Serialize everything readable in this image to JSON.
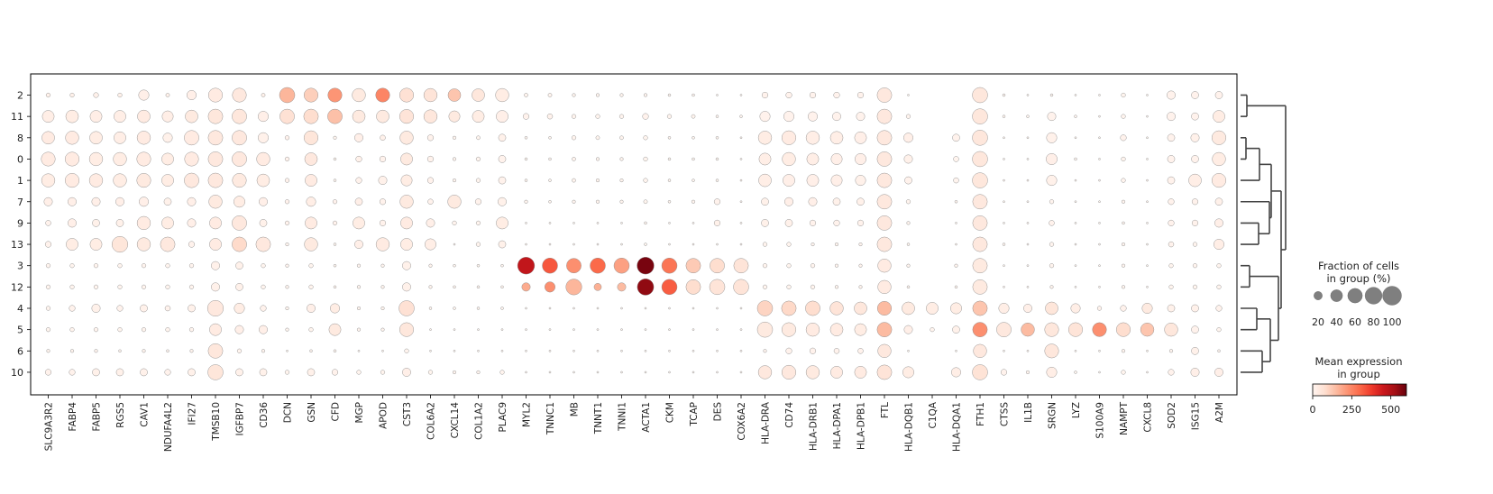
{
  "chart_data": {
    "type": "dotplot",
    "title": "",
    "xlabel": "",
    "ylabel": "",
    "genes": [
      "SLC9A3R2",
      "FABP4",
      "FABP5",
      "RGS5",
      "CAV1",
      "NDUFA4L2",
      "IFI27",
      "TMSB10",
      "IGFBP7",
      "CD36",
      "DCN",
      "GSN",
      "CFD",
      "MGP",
      "APOD",
      "CST3",
      "COL6A2",
      "CXCL14",
      "COL1A2",
      "PLAC9",
      "MYL2",
      "TNNC1",
      "MB",
      "TNNT1",
      "TNNI1",
      "ACTA1",
      "CKM",
      "TCAP",
      "DES",
      "COX6A2",
      "HLA-DRA",
      "CD74",
      "HLA-DRB1",
      "HLA-DPA1",
      "HLA-DPB1",
      "FTL",
      "HLA-DQB1",
      "C1QA",
      "HLA-DQA1",
      "FTH1",
      "CTSS",
      "IL1B",
      "SRGN",
      "LYZ",
      "S100A9",
      "NAMPT",
      "CXCL8",
      "SOD2",
      "ISG15",
      "A2M"
    ],
    "groups": [
      "2",
      "11",
      "8",
      "0",
      "1",
      "7",
      "9",
      "13",
      "3",
      "12",
      "4",
      "5",
      "6",
      "10"
    ],
    "size_legend": {
      "title_line1": "Fraction of cells",
      "title_line2": "in group (%)",
      "values": [
        20,
        40,
        60,
        80,
        100
      ],
      "labels": [
        "20",
        "40",
        "60",
        "80",
        "100"
      ]
    },
    "color_legend": {
      "title_line1": "Mean expression",
      "title_line2": "in group",
      "range": [
        0,
        600
      ],
      "ticks": [
        0,
        250,
        500
      ],
      "tick_labels": [
        "0",
        "250",
        "500"
      ],
      "colormap": "Reds"
    },
    "dendrogram": true,
    "fraction_pct": [
      [
        5,
        5,
        7,
        5,
        30,
        4,
        25,
        55,
        55,
        4,
        65,
        55,
        55,
        50,
        55,
        55,
        50,
        45,
        45,
        50,
        4,
        4,
        3,
        3,
        3,
        3,
        2,
        2,
        1,
        1,
        10,
        10,
        10,
        10,
        10,
        60,
        1,
        0,
        0,
        65,
        2,
        1,
        2,
        1,
        1,
        5,
        1,
        20,
        15,
        15
      ],
      [
        40,
        45,
        40,
        40,
        45,
        35,
        45,
        60,
        60,
        30,
        60,
        60,
        60,
        45,
        45,
        55,
        50,
        35,
        40,
        40,
        10,
        8,
        5,
        5,
        5,
        10,
        5,
        4,
        2,
        2,
        30,
        30,
        25,
        20,
        20,
        60,
        5,
        0,
        0,
        65,
        2,
        2,
        20,
        2,
        1,
        5,
        1,
        20,
        15,
        40
      ],
      [
        45,
        50,
        45,
        40,
        50,
        25,
        60,
        60,
        60,
        30,
        5,
        55,
        3,
        20,
        8,
        50,
        10,
        3,
        4,
        15,
        2,
        2,
        5,
        4,
        4,
        5,
        2,
        2,
        2,
        1,
        50,
        55,
        50,
        45,
        40,
        60,
        25,
        0,
        15,
        65,
        1,
        1,
        30,
        1,
        1,
        10,
        1,
        15,
        20,
        55
      ],
      [
        55,
        55,
        50,
        50,
        55,
        40,
        55,
        60,
        60,
        50,
        5,
        45,
        2,
        10,
        10,
        40,
        10,
        3,
        5,
        15,
        2,
        2,
        4,
        3,
        3,
        5,
        2,
        2,
        2,
        1,
        40,
        50,
        40,
        35,
        35,
        60,
        20,
        0,
        8,
        65,
        1,
        1,
        35,
        2,
        1,
        5,
        1,
        15,
        15,
        50
      ],
      [
        50,
        55,
        50,
        50,
        55,
        40,
        60,
        60,
        55,
        45,
        5,
        40,
        2,
        10,
        20,
        35,
        10,
        3,
        5,
        15,
        2,
        2,
        4,
        3,
        3,
        5,
        2,
        2,
        2,
        1,
        45,
        40,
        40,
        35,
        30,
        60,
        15,
        0,
        8,
        65,
        1,
        1,
        30,
        1,
        1,
        5,
        1,
        15,
        45,
        55
      ],
      [
        20,
        20,
        20,
        20,
        25,
        15,
        20,
        50,
        35,
        20,
        5,
        25,
        5,
        15,
        10,
        50,
        8,
        50,
        10,
        20,
        3,
        2,
        3,
        3,
        3,
        4,
        2,
        3,
        10,
        1,
        15,
        20,
        20,
        15,
        15,
        60,
        5,
        0,
        2,
        60,
        1,
        1,
        5,
        1,
        1,
        3,
        1,
        10,
        10,
        15
      ],
      [
        8,
        20,
        15,
        15,
        50,
        40,
        20,
        40,
        60,
        15,
        5,
        40,
        5,
        40,
        10,
        40,
        20,
        5,
        5,
        40,
        1,
        1,
        1,
        1,
        1,
        2,
        1,
        1,
        10,
        1,
        15,
        15,
        10,
        10,
        10,
        60,
        3,
        0,
        1,
        60,
        1,
        1,
        8,
        1,
        1,
        2,
        1,
        10,
        10,
        20
      ],
      [
        10,
        40,
        40,
        70,
        50,
        60,
        10,
        40,
        60,
        60,
        3,
        50,
        2,
        20,
        50,
        40,
        35,
        1,
        5,
        15,
        1,
        1,
        1,
        1,
        1,
        2,
        1,
        1,
        1,
        1,
        5,
        5,
        3,
        3,
        3,
        60,
        2,
        0,
        1,
        60,
        2,
        1,
        5,
        1,
        1,
        3,
        1,
        8,
        5,
        30
      ],
      [
        5,
        5,
        5,
        5,
        5,
        5,
        5,
        20,
        15,
        5,
        3,
        5,
        2,
        3,
        3,
        20,
        3,
        2,
        2,
        2,
        80,
        65,
        60,
        65,
        65,
        80,
        65,
        60,
        60,
        60,
        5,
        5,
        5,
        3,
        3,
        50,
        3,
        0,
        3,
        60,
        1,
        1,
        5,
        1,
        1,
        3,
        1,
        5,
        5,
        5
      ],
      [
        5,
        5,
        5,
        5,
        5,
        5,
        5,
        20,
        15,
        5,
        3,
        5,
        2,
        3,
        3,
        20,
        3,
        2,
        2,
        2,
        20,
        30,
        70,
        15,
        20,
        75,
        65,
        60,
        65,
        65,
        5,
        5,
        5,
        3,
        3,
        50,
        2,
        0,
        2,
        60,
        1,
        1,
        3,
        1,
        1,
        3,
        1,
        5,
        5,
        5
      ],
      [
        5,
        10,
        20,
        10,
        15,
        8,
        15,
        70,
        30,
        10,
        3,
        20,
        25,
        3,
        3,
        65,
        2,
        2,
        2,
        2,
        1,
        1,
        1,
        1,
        1,
        1,
        1,
        1,
        1,
        1,
        65,
        60,
        60,
        50,
        45,
        55,
        45,
        40,
        35,
        60,
        30,
        20,
        45,
        25,
        5,
        10,
        30,
        15,
        15,
        10
      ],
      [
        5,
        5,
        5,
        5,
        5,
        5,
        5,
        40,
        20,
        20,
        3,
        5,
        40,
        3,
        3,
        55,
        1,
        1,
        1,
        1,
        1,
        1,
        1,
        1,
        1,
        1,
        1,
        1,
        1,
        1,
        65,
        55,
        50,
        45,
        40,
        60,
        20,
        5,
        15,
        60,
        60,
        50,
        55,
        55,
        55,
        55,
        50,
        50,
        15,
        5
      ],
      [
        3,
        3,
        3,
        2,
        3,
        2,
        3,
        60,
        5,
        3,
        1,
        2,
        2,
        1,
        1,
        5,
        1,
        1,
        1,
        1,
        1,
        1,
        1,
        1,
        1,
        1,
        1,
        1,
        1,
        1,
        3,
        10,
        10,
        8,
        8,
        50,
        1,
        0,
        1,
        50,
        1,
        1,
        55,
        1,
        1,
        3,
        1,
        3,
        15,
        2
      ],
      [
        10,
        10,
        15,
        15,
        15,
        10,
        15,
        65,
        15,
        15,
        5,
        15,
        10,
        5,
        5,
        20,
        5,
        3,
        3,
        5,
        1,
        1,
        1,
        1,
        1,
        1,
        1,
        1,
        1,
        1,
        50,
        55,
        50,
        40,
        40,
        60,
        35,
        0,
        25,
        65,
        10,
        3,
        30,
        2,
        1,
        5,
        1,
        10,
        20,
        20
      ]
    ],
    "mean_expr": [
      [
        15,
        15,
        15,
        15,
        20,
        15,
        20,
        35,
        45,
        15,
        160,
        110,
        220,
        40,
        250,
        70,
        60,
        130,
        50,
        30,
        5,
        5,
        5,
        5,
        5,
        5,
        5,
        5,
        5,
        5,
        10,
        10,
        10,
        10,
        10,
        45,
        5,
        0,
        0,
        50,
        5,
        5,
        5,
        5,
        5,
        5,
        5,
        10,
        10,
        10
      ],
      [
        25,
        30,
        25,
        25,
        35,
        25,
        40,
        50,
        50,
        20,
        70,
        80,
        140,
        40,
        40,
        60,
        50,
        40,
        30,
        20,
        10,
        10,
        5,
        5,
        5,
        10,
        5,
        5,
        5,
        5,
        10,
        10,
        10,
        10,
        10,
        45,
        5,
        0,
        0,
        50,
        5,
        5,
        10,
        5,
        5,
        5,
        5,
        10,
        10,
        30
      ],
      [
        35,
        35,
        30,
        25,
        35,
        15,
        35,
        45,
        45,
        15,
        10,
        55,
        5,
        20,
        15,
        40,
        10,
        5,
        5,
        15,
        5,
        5,
        5,
        5,
        5,
        5,
        5,
        5,
        5,
        5,
        30,
        35,
        25,
        25,
        20,
        45,
        20,
        0,
        10,
        50,
        5,
        5,
        15,
        5,
        5,
        10,
        5,
        10,
        15,
        40
      ],
      [
        35,
        35,
        30,
        30,
        35,
        30,
        35,
        45,
        45,
        35,
        10,
        45,
        5,
        15,
        10,
        40,
        10,
        5,
        5,
        10,
        5,
        5,
        5,
        5,
        5,
        5,
        5,
        5,
        5,
        5,
        25,
        30,
        25,
        20,
        20,
        45,
        15,
        0,
        5,
        50,
        5,
        5,
        20,
        5,
        5,
        5,
        5,
        10,
        10,
        30
      ],
      [
        30,
        35,
        35,
        30,
        40,
        30,
        45,
        45,
        40,
        30,
        10,
        35,
        5,
        10,
        15,
        30,
        10,
        5,
        5,
        10,
        5,
        5,
        5,
        5,
        5,
        5,
        5,
        5,
        5,
        5,
        25,
        20,
        20,
        20,
        15,
        45,
        10,
        0,
        5,
        50,
        5,
        5,
        15,
        5,
        5,
        5,
        5,
        10,
        25,
        35
      ],
      [
        20,
        20,
        20,
        20,
        20,
        15,
        20,
        40,
        30,
        20,
        10,
        25,
        10,
        20,
        10,
        40,
        10,
        40,
        10,
        15,
        5,
        5,
        5,
        5,
        5,
        5,
        5,
        5,
        10,
        5,
        15,
        20,
        20,
        15,
        15,
        45,
        5,
        0,
        5,
        45,
        5,
        5,
        5,
        5,
        5,
        5,
        5,
        10,
        10,
        15
      ],
      [
        10,
        20,
        15,
        15,
        35,
        30,
        20,
        35,
        45,
        15,
        10,
        35,
        10,
        30,
        10,
        35,
        20,
        5,
        5,
        30,
        5,
        5,
        5,
        5,
        5,
        5,
        5,
        5,
        15,
        5,
        15,
        15,
        10,
        10,
        10,
        45,
        5,
        0,
        5,
        45,
        5,
        5,
        10,
        5,
        5,
        5,
        5,
        10,
        10,
        20
      ],
      [
        10,
        30,
        30,
        55,
        40,
        45,
        10,
        35,
        85,
        45,
        5,
        40,
        5,
        20,
        35,
        30,
        25,
        5,
        5,
        15,
        5,
        5,
        5,
        5,
        5,
        5,
        5,
        5,
        5,
        5,
        5,
        5,
        5,
        5,
        5,
        45,
        5,
        0,
        5,
        45,
        5,
        5,
        5,
        5,
        5,
        5,
        5,
        10,
        5,
        25
      ],
      [
        5,
        5,
        5,
        5,
        5,
        5,
        5,
        15,
        15,
        5,
        5,
        5,
        5,
        5,
        5,
        15,
        5,
        5,
        5,
        5,
        470,
        330,
        230,
        300,
        200,
        580,
        280,
        120,
        80,
        60,
        5,
        5,
        5,
        5,
        5,
        35,
        5,
        0,
        5,
        40,
        5,
        5,
        5,
        5,
        5,
        5,
        5,
        5,
        5,
        5
      ],
      [
        5,
        5,
        5,
        5,
        5,
        5,
        5,
        15,
        15,
        5,
        5,
        5,
        5,
        5,
        5,
        15,
        5,
        5,
        5,
        5,
        180,
        230,
        160,
        170,
        150,
        550,
        320,
        80,
        60,
        60,
        5,
        5,
        5,
        5,
        5,
        35,
        5,
        0,
        5,
        40,
        5,
        5,
        5,
        5,
        5,
        5,
        5,
        5,
        5,
        5
      ],
      [
        5,
        10,
        15,
        10,
        15,
        10,
        15,
        45,
        30,
        10,
        5,
        20,
        30,
        5,
        5,
        70,
        5,
        5,
        5,
        5,
        5,
        5,
        5,
        5,
        5,
        5,
        5,
        5,
        5,
        5,
        100,
        90,
        80,
        60,
        50,
        150,
        40,
        30,
        30,
        130,
        25,
        20,
        55,
        25,
        10,
        10,
        40,
        15,
        15,
        10
      ],
      [
        5,
        5,
        5,
        5,
        5,
        5,
        5,
        35,
        20,
        20,
        5,
        5,
        40,
        5,
        5,
        50,
        5,
        5,
        5,
        5,
        5,
        5,
        5,
        5,
        5,
        5,
        5,
        5,
        5,
        5,
        40,
        40,
        35,
        35,
        30,
        150,
        20,
        5,
        15,
        230,
        45,
        150,
        50,
        60,
        230,
        80,
        130,
        50,
        10,
        5
      ],
      [
        5,
        5,
        5,
        5,
        5,
        5,
        5,
        50,
        5,
        5,
        5,
        5,
        5,
        5,
        5,
        5,
        5,
        5,
        5,
        5,
        5,
        5,
        5,
        5,
        5,
        5,
        5,
        5,
        5,
        5,
        5,
        10,
        10,
        10,
        10,
        45,
        5,
        0,
        5,
        45,
        5,
        5,
        50,
        5,
        5,
        5,
        5,
        5,
        15,
        5
      ],
      [
        10,
        10,
        15,
        15,
        15,
        10,
        15,
        55,
        15,
        15,
        5,
        15,
        10,
        5,
        5,
        20,
        5,
        5,
        5,
        5,
        5,
        5,
        5,
        5,
        5,
        5,
        5,
        5,
        5,
        5,
        45,
        45,
        40,
        35,
        35,
        60,
        30,
        0,
        25,
        65,
        10,
        5,
        25,
        5,
        5,
        5,
        5,
        10,
        20,
        20
      ]
    ]
  }
}
